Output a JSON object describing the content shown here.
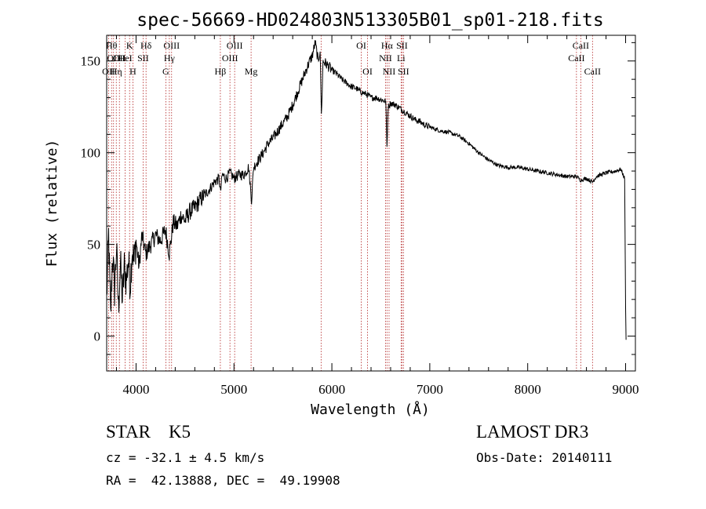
{
  "chart_data": {
    "type": "line",
    "title": "spec-56669-HD024803N513305B01_sp01-218.fits",
    "xlabel": "Wavelength (Å)",
    "ylabel": "Flux (relative)",
    "xlim": [
      3700,
      9100
    ],
    "ylim": [
      -19,
      164
    ],
    "x_ticks": [
      4000,
      5000,
      6000,
      7000,
      8000,
      9000
    ],
    "y_ticks": [
      0,
      50,
      100,
      150
    ],
    "series": [
      {
        "name": "spectrum",
        "points": [
          [
            3700,
            20
          ],
          [
            3720,
            55
          ],
          [
            3740,
            10
          ],
          [
            3760,
            45
          ],
          [
            3780,
            25
          ],
          [
            3800,
            48
          ],
          [
            3820,
            15
          ],
          [
            3840,
            40
          ],
          [
            3860,
            20
          ],
          [
            3880,
            38
          ],
          [
            3900,
            30
          ],
          [
            3920,
            42
          ],
          [
            3940,
            28
          ],
          [
            3960,
            48
          ],
          [
            3980,
            40
          ],
          [
            4000,
            52
          ],
          [
            4030,
            38
          ],
          [
            4060,
            55
          ],
          [
            4100,
            45
          ],
          [
            4150,
            50
          ],
          [
            4200,
            55
          ],
          [
            4250,
            52
          ],
          [
            4300,
            58
          ],
          [
            4340,
            45
          ],
          [
            4380,
            62
          ],
          [
            4420,
            60
          ],
          [
            4460,
            66
          ],
          [
            4500,
            63
          ],
          [
            4550,
            68
          ],
          [
            4600,
            70
          ],
          [
            4650,
            74
          ],
          [
            4700,
            77
          ],
          [
            4750,
            80
          ],
          [
            4800,
            84
          ],
          [
            4850,
            86
          ],
          [
            4862,
            78
          ],
          [
            4880,
            88
          ],
          [
            4920,
            86
          ],
          [
            4960,
            89
          ],
          [
            5000,
            86
          ],
          [
            5050,
            88
          ],
          [
            5100,
            88
          ],
          [
            5150,
            92
          ],
          [
            5180,
            74
          ],
          [
            5200,
            92
          ],
          [
            5250,
            96
          ],
          [
            5300,
            100
          ],
          [
            5350,
            105
          ],
          [
            5400,
            108
          ],
          [
            5450,
            112
          ],
          [
            5500,
            116
          ],
          [
            5550,
            120
          ],
          [
            5600,
            126
          ],
          [
            5650,
            133
          ],
          [
            5700,
            140
          ],
          [
            5750,
            147
          ],
          [
            5800,
            153
          ],
          [
            5830,
            160
          ],
          [
            5860,
            150
          ],
          [
            5880,
            156
          ],
          [
            5893,
            120
          ],
          [
            5910,
            150
          ],
          [
            5950,
            148
          ],
          [
            6000,
            145
          ],
          [
            6050,
            143
          ],
          [
            6100,
            140
          ],
          [
            6150,
            138
          ],
          [
            6200,
            136
          ],
          [
            6250,
            135
          ],
          [
            6300,
            133
          ],
          [
            6350,
            132
          ],
          [
            6400,
            130
          ],
          [
            6450,
            130
          ],
          [
            6500,
            129
          ],
          [
            6550,
            128
          ],
          [
            6563,
            103
          ],
          [
            6575,
            125
          ],
          [
            6600,
            127
          ],
          [
            6650,
            126
          ],
          [
            6700,
            124
          ],
          [
            6750,
            122
          ],
          [
            6800,
            120
          ],
          [
            6850,
            118
          ],
          [
            6900,
            117
          ],
          [
            6950,
            115
          ],
          [
            7000,
            114
          ],
          [
            7100,
            112
          ],
          [
            7200,
            111
          ],
          [
            7300,
            109
          ],
          [
            7400,
            105
          ],
          [
            7500,
            100
          ],
          [
            7600,
            96
          ],
          [
            7700,
            93
          ],
          [
            7800,
            92
          ],
          [
            7900,
            92
          ],
          [
            8000,
            91
          ],
          [
            8100,
            90
          ],
          [
            8200,
            89
          ],
          [
            8300,
            88
          ],
          [
            8400,
            87
          ],
          [
            8500,
            87
          ],
          [
            8540,
            85
          ],
          [
            8600,
            86
          ],
          [
            8662,
            84
          ],
          [
            8700,
            87
          ],
          [
            8800,
            89
          ],
          [
            8900,
            90
          ],
          [
            8950,
            91
          ],
          [
            8990,
            86
          ],
          [
            9000,
            15
          ],
          [
            9005,
            -2
          ]
        ]
      }
    ],
    "spectral_lines": [
      {
        "wave": 3720,
        "label": "OII",
        "row": 3
      },
      {
        "wave": 3750,
        "label": "Hθ",
        "row": 1
      },
      {
        "wave": 3770,
        "label": "OII",
        "row": 2
      },
      {
        "wave": 3798,
        "label": "Hη",
        "row": 3
      },
      {
        "wave": 3830,
        "label": "OII",
        "row": 2
      },
      {
        "wave": 3889,
        "label": "HeI",
        "row": 2
      },
      {
        "wave": 3934,
        "label": "K",
        "row": 1
      },
      {
        "wave": 3968,
        "label": "H",
        "row": 3
      },
      {
        "wave": 4072,
        "label": "SII",
        "row": 2
      },
      {
        "wave": 4102,
        "label": "Hδ",
        "row": 1
      },
      {
        "wave": 4304,
        "label": "G",
        "row": 3
      },
      {
        "wave": 4340,
        "label": "Hγ",
        "row": 2
      },
      {
        "wave": 4363,
        "label": "OIII",
        "row": 1
      },
      {
        "wave": 4861,
        "label": "Hβ",
        "row": 3
      },
      {
        "wave": 4959,
        "label": "OIII",
        "row": 2
      },
      {
        "wave": 5007,
        "label": "OIII",
        "row": 1
      },
      {
        "wave": 5175,
        "label": "Mg",
        "row": 3
      },
      {
        "wave": 5890,
        "label": "",
        "row": 0
      },
      {
        "wave": 6300,
        "label": "OI",
        "row": 1
      },
      {
        "wave": 6364,
        "label": "OI",
        "row": 3
      },
      {
        "wave": 6548,
        "label": "NII",
        "row": 2
      },
      {
        "wave": 6563,
        "label": "Hα",
        "row": 1
      },
      {
        "wave": 6584,
        "label": "NII",
        "row": 3
      },
      {
        "wave": 6707,
        "label": "Li",
        "row": 2
      },
      {
        "wave": 6716,
        "label": "SII",
        "row": 1
      },
      {
        "wave": 6731,
        "label": "SII",
        "row": 3
      },
      {
        "wave": 8498,
        "label": "CaII",
        "row": 2
      },
      {
        "wave": 8542,
        "label": "CaII",
        "row": 1
      },
      {
        "wave": 8662,
        "label": "CaII",
        "row": 3
      }
    ]
  },
  "info": {
    "class_line": "STAR    K5",
    "survey": "LAMOST DR3",
    "redshift": "cz = -32.1 ± 4.5 km/s",
    "obs_date": "Obs-Date: 20140111",
    "coords": "RA =  42.13888, DEC =  49.19908"
  },
  "colors": {
    "line_marker": "#b22222",
    "spectrum": "#000000"
  }
}
